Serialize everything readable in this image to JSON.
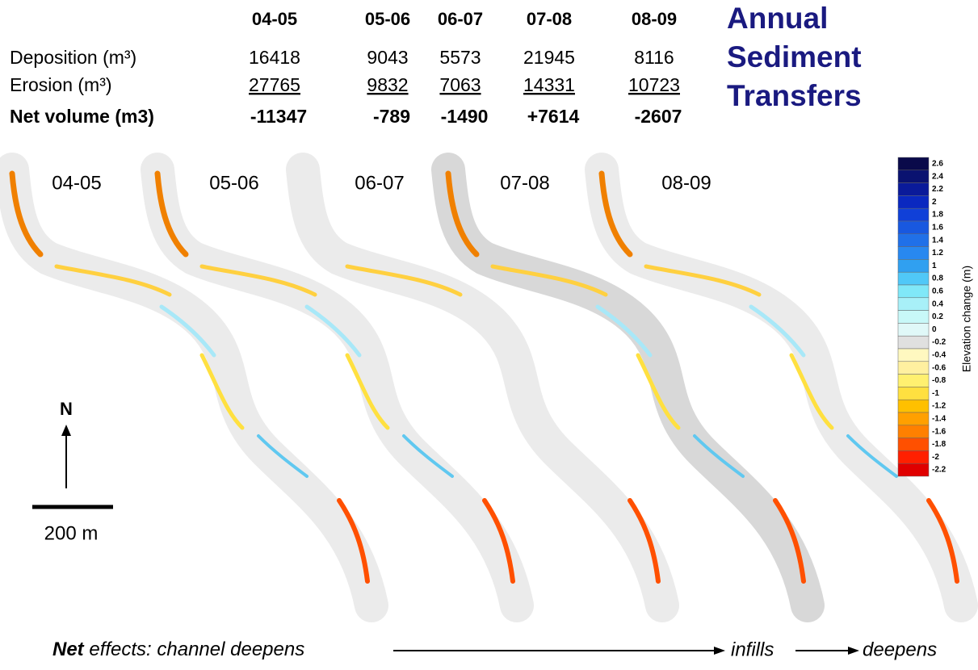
{
  "title": [
    "Annual",
    "Sediment",
    "Transfers"
  ],
  "table": {
    "columns": [
      "04-05",
      "05-06",
      "06-07",
      "07-08",
      "08-09"
    ],
    "rows": [
      {
        "label": "Deposition (m³)",
        "values": [
          "16418",
          "9043",
          "5573",
          "21945",
          "8116"
        ]
      },
      {
        "label": "Erosion (m³)",
        "values": [
          "27765",
          "9832",
          "7063",
          "14331",
          "10723"
        ]
      },
      {
        "label": "Net volume (m3)",
        "values": [
          "-11347",
          "-789",
          "-1490",
          "+7614",
          "-2607"
        ]
      }
    ]
  },
  "maps": {
    "labels": [
      "04-05",
      "05-06",
      "06-07",
      "07-08",
      "08-09"
    ]
  },
  "colorbar": {
    "title": "Elevation change (m)",
    "ticks": [
      2.6,
      2.4,
      2.2,
      2,
      1.8,
      1.6,
      1.4,
      1.2,
      1,
      0.8,
      0.6,
      0.4,
      0.2,
      0,
      -0.2,
      -0.4,
      -0.6,
      -0.8,
      -1,
      -1.2,
      -1.4,
      -1.6,
      -1.8,
      -2,
      -2.2
    ],
    "colors": [
      "#0a0a4a",
      "#0a1270",
      "#0a1a9a",
      "#0a28c0",
      "#1040d8",
      "#1858e0",
      "#2070e8",
      "#2888f0",
      "#30a0f0",
      "#50c8f8",
      "#80e8f8",
      "#a8f0f8",
      "#c8f8f8",
      "#e0f8f8",
      "#e0e0e0",
      "#fff8c0",
      "#fff0a0",
      "#fff070",
      "#ffe040",
      "#ffc000",
      "#ffa000",
      "#ff8000",
      "#ff5000",
      "#ff2000",
      "#e00000"
    ]
  },
  "north": "N",
  "scale": "200 m",
  "footer": {
    "bold": "Net",
    "lead": "effects: channel deepens",
    "mid": "infills",
    "end": "deepens"
  }
}
